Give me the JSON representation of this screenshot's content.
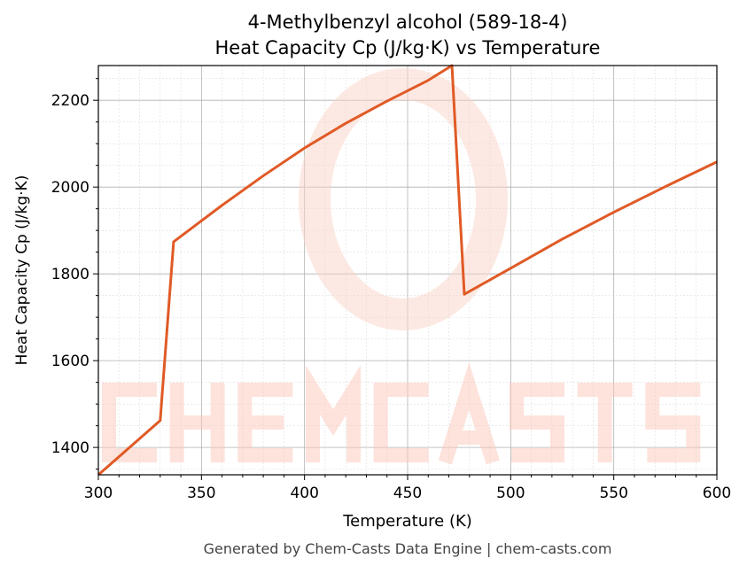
{
  "chart_data": {
    "type": "line",
    "title": "4-Methylbenzyl alcohol (589-18-4)",
    "subtitle": "Heat Capacity Cp (J/kg·K) vs Temperature",
    "xlabel": "Temperature (K)",
    "ylabel": "Heat Capacity Cp (J/kg·K)",
    "xlim": [
      300,
      600
    ],
    "ylim": [
      1337,
      2280
    ],
    "xticks": [
      300,
      350,
      400,
      450,
      500,
      550,
      600
    ],
    "yticks": [
      1400,
      1600,
      1800,
      2000,
      2200
    ],
    "grid": true,
    "series": [
      {
        "color": "#e05a26",
        "x": [
          300,
          330,
          336.5,
          360,
          380,
          400,
          420,
          440,
          460,
          471.5,
          477.5,
          500,
          525,
          550,
          575,
          600
        ],
        "y": [
          1337,
          1462,
          1874,
          1958,
          2026,
          2090,
          2147,
          2198,
          2246,
          2280,
          1753,
          1813,
          1880,
          1942,
          2001,
          2058
        ]
      }
    ]
  },
  "watermark": "CHEMCASTS",
  "footer": "Generated by Chem-Casts Data Engine | chem-casts.com"
}
